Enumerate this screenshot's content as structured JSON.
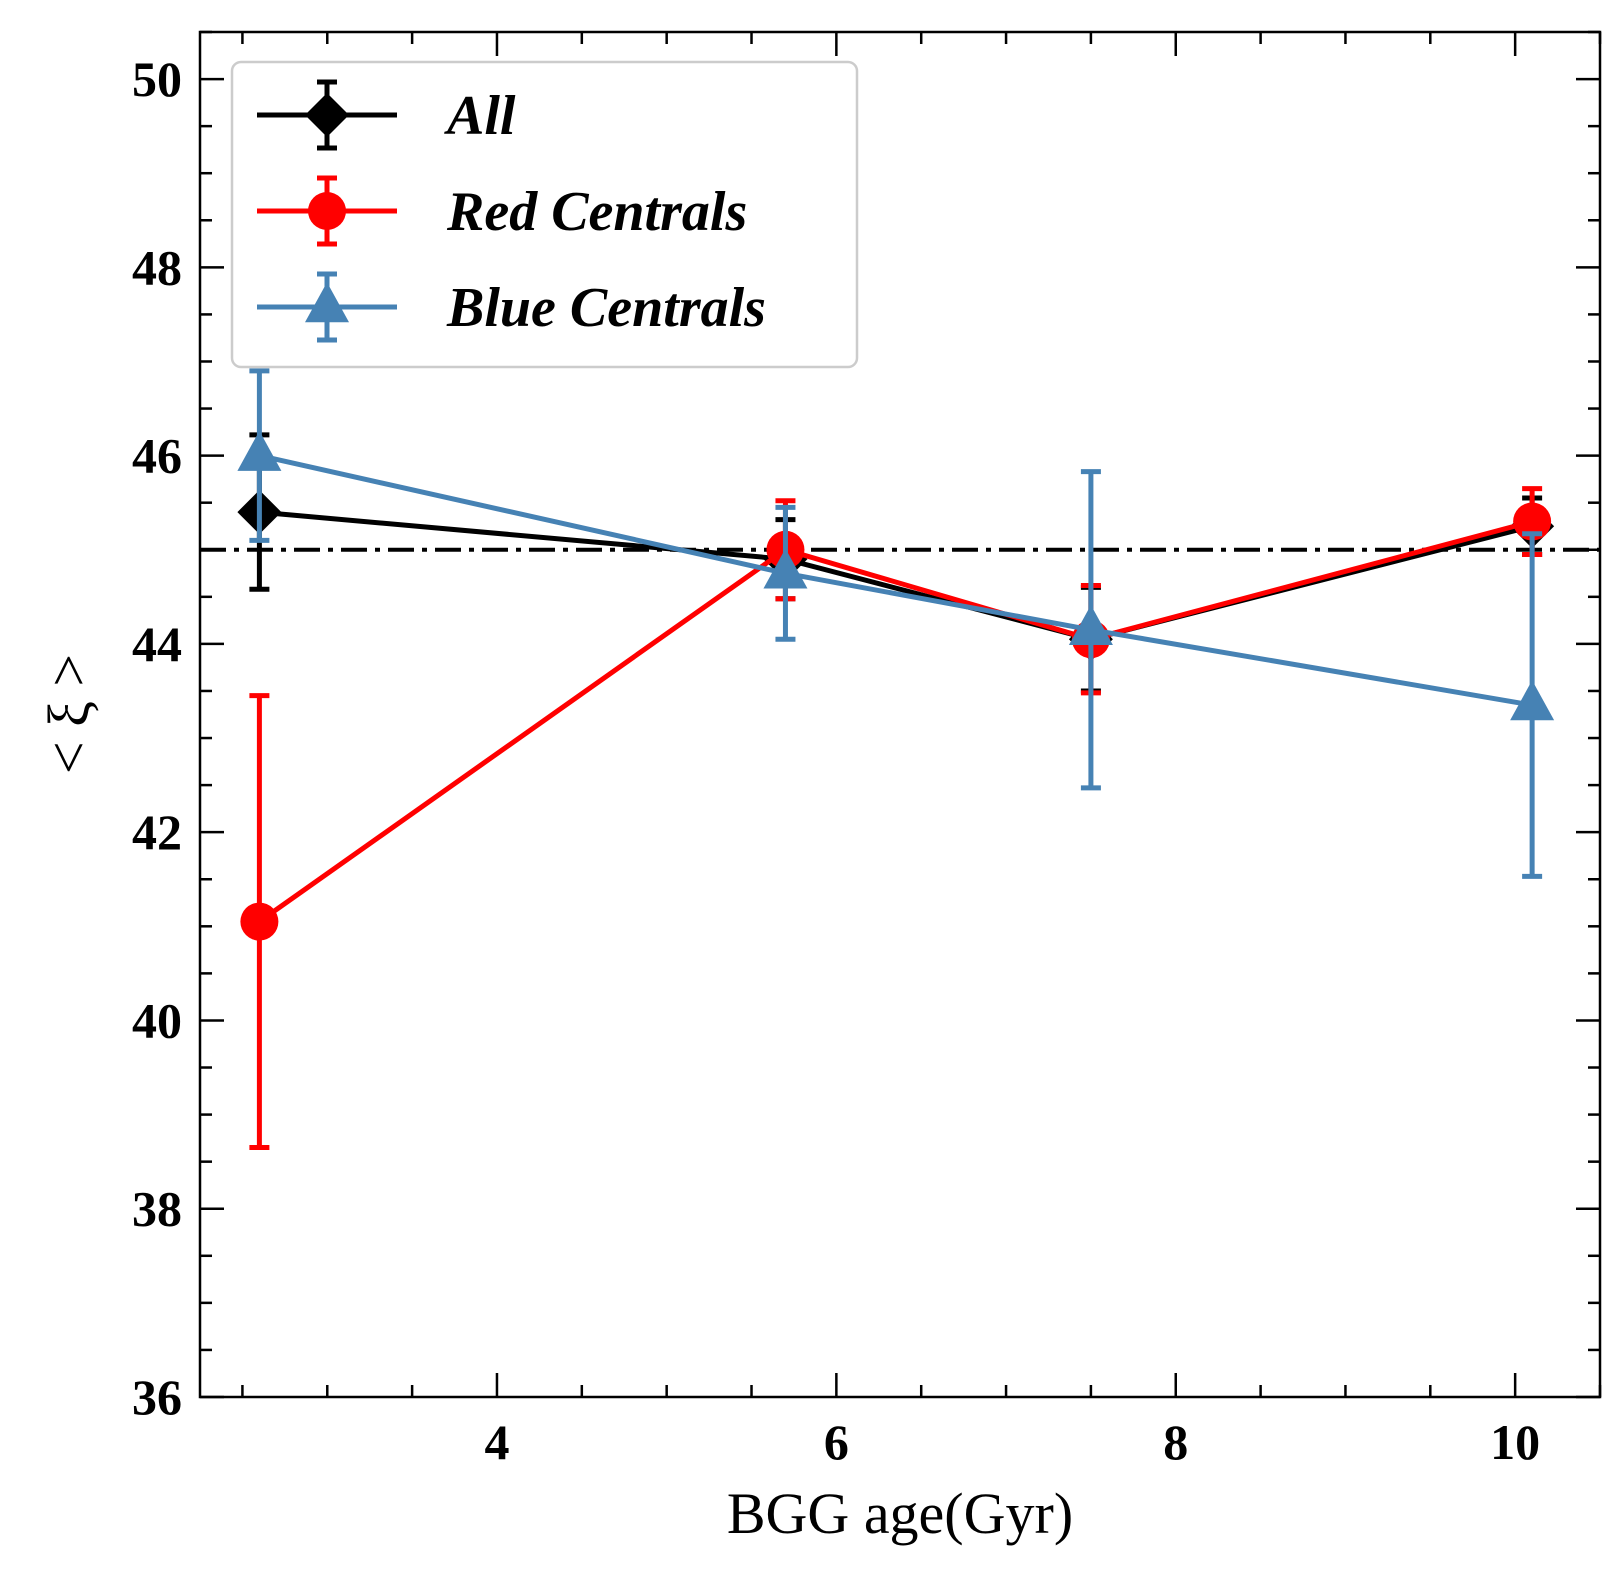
{
  "chart_data": {
    "type": "line",
    "xlabel": "BGG age(Gyr)",
    "ylabel": "< ξ >",
    "xlim": [
      2.25,
      10.5
    ],
    "ylim": [
      36,
      50.5
    ],
    "x_ticks": [
      4,
      6,
      8,
      10
    ],
    "y_ticks": [
      36,
      38,
      40,
      42,
      44,
      46,
      48,
      50
    ],
    "x_tick_labels": [
      "4",
      "6",
      "8",
      "10"
    ],
    "y_tick_labels": [
      "36",
      "38",
      "40",
      "42",
      "44",
      "46",
      "48",
      "50"
    ],
    "reference_line": {
      "y": 45,
      "style": "dash-dot",
      "color": "#000000"
    },
    "legend_position": "upper-left",
    "grid": false,
    "series": [
      {
        "name": "All",
        "color": "#000000",
        "marker": "diamond",
        "x": [
          2.6,
          5.7,
          7.5,
          10.1
        ],
        "y": [
          45.4,
          44.9,
          44.05,
          45.25
        ],
        "yerr": [
          0.82,
          0.42,
          0.55,
          0.3
        ]
      },
      {
        "name": "Red Centrals",
        "color": "#ff0000",
        "marker": "circle",
        "x": [
          2.6,
          5.7,
          7.5,
          10.1
        ],
        "y": [
          41.05,
          45.0,
          44.05,
          45.3
        ],
        "yerr": [
          2.4,
          0.52,
          0.57,
          0.35
        ]
      },
      {
        "name": "Blue Centrals",
        "color": "#4682b4",
        "marker": "triangle",
        "x": [
          2.6,
          5.7,
          7.5,
          10.1
        ],
        "y": [
          46.0,
          44.75,
          44.15,
          43.35
        ],
        "yerr": [
          0.9,
          0.7,
          1.68,
          1.82
        ]
      }
    ]
  }
}
